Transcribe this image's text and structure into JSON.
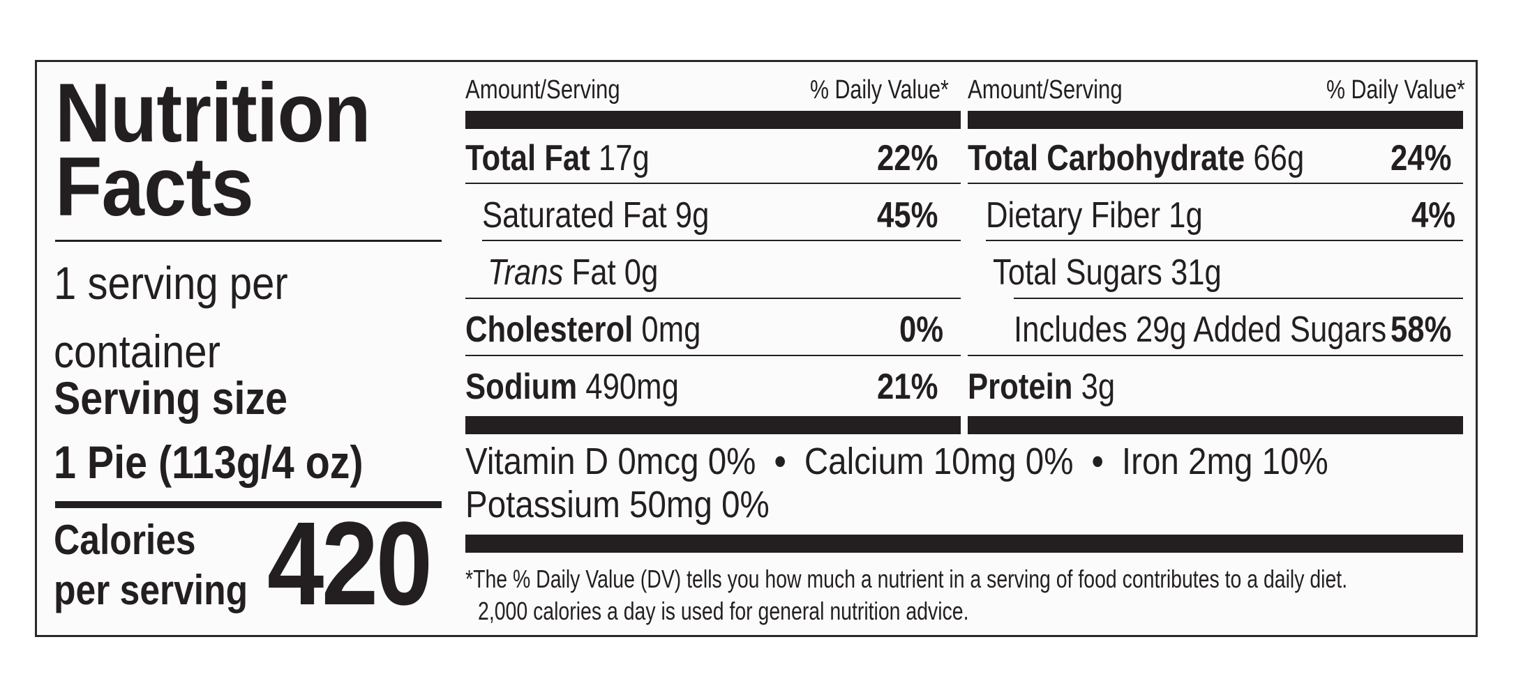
{
  "label": {
    "title_line1": "Nutrition",
    "title_line2": "Facts",
    "servings_line1": "1 serving per",
    "servings_line2": "container",
    "serving_size_label": "Serving size",
    "serving_size_value": "1 Pie (113g/4 oz)",
    "calories_line1": "Calories",
    "calories_line2": "per serving",
    "calories_value": "420"
  },
  "left_table": {
    "header_amount": "Amount/Serving",
    "header_dv": "% Daily Value*",
    "rows": [
      {
        "name": "Total Fat",
        "amount": "17g",
        "dv": "22%"
      },
      {
        "name": "Saturated Fat",
        "amount": "9g",
        "dv": "45%"
      },
      {
        "name": "Trans",
        "name_suffix": "Fat",
        "amount": "0g",
        "dv": ""
      },
      {
        "name": "Cholesterol",
        "amount": "0mg",
        "dv": "0%"
      },
      {
        "name": "Sodium",
        "amount": "490mg",
        "dv": "21%"
      }
    ]
  },
  "right_table": {
    "header_amount": "Amount/Serving",
    "header_dv": "% Daily Value*",
    "rows": [
      {
        "name": "Total Carbohydrate",
        "amount": "66g",
        "dv": "24%"
      },
      {
        "name": "Dietary Fiber",
        "amount": "1g",
        "dv": "4%"
      },
      {
        "name": "Total Sugars",
        "amount": "31g",
        "dv": ""
      },
      {
        "name": "Includes 29g Added Sugars",
        "amount": "",
        "dv": "58%"
      },
      {
        "name": "Protein",
        "amount": "3g",
        "dv": ""
      }
    ]
  },
  "vitamins": {
    "vitamin_d": "Vitamin D 0mcg 0%",
    "calcium": "Calcium 10mg 0%",
    "iron": "Iron 2mg 10%",
    "potassium": "Potassium 50mg 0%",
    "separator": "•"
  },
  "footnote": {
    "line1": "*The % Daily Value (DV) tells you how much a nutrient in a serving of food contributes to a daily diet.",
    "line2": "2,000 calories a day is used for general nutrition advice."
  }
}
